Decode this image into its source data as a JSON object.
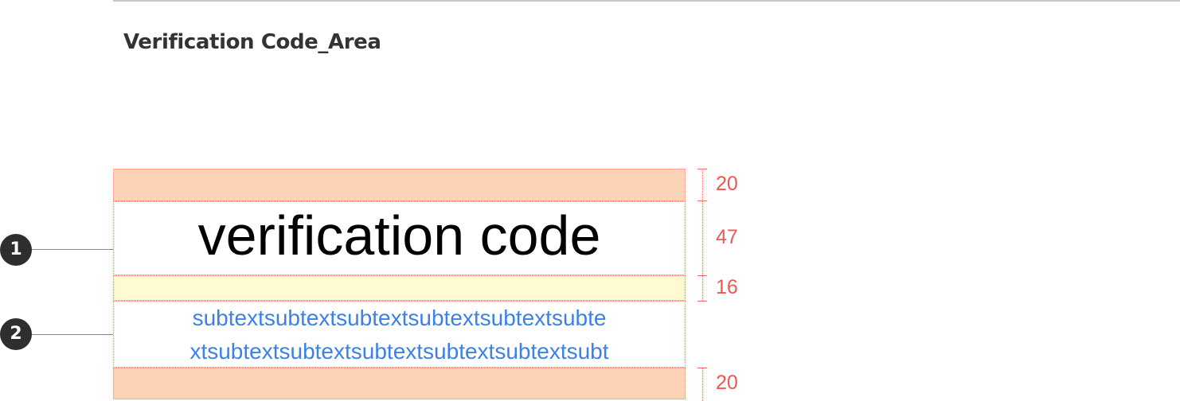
{
  "page": {
    "title": "Verification Code_Area"
  },
  "spec": {
    "heading_text": "verification code",
    "subtext_lines": [
      "subtextsubtextsubtextsubtextsubtextsubte",
      "xtsubtextsubtextsubtextsubtextsubtextsubt"
    ]
  },
  "dimensions": {
    "top_padding": "20",
    "heading_height": "47",
    "gap": "16",
    "bottom_padding": "20"
  },
  "callouts": {
    "one": "1",
    "two": "2"
  },
  "colors": {
    "padding_zone": "#fdd3b7",
    "gap_zone": "#fefbd2",
    "dimension_text": "#ea5a52",
    "subtext": "#3c82e6",
    "badge": "#2e2e2e"
  }
}
